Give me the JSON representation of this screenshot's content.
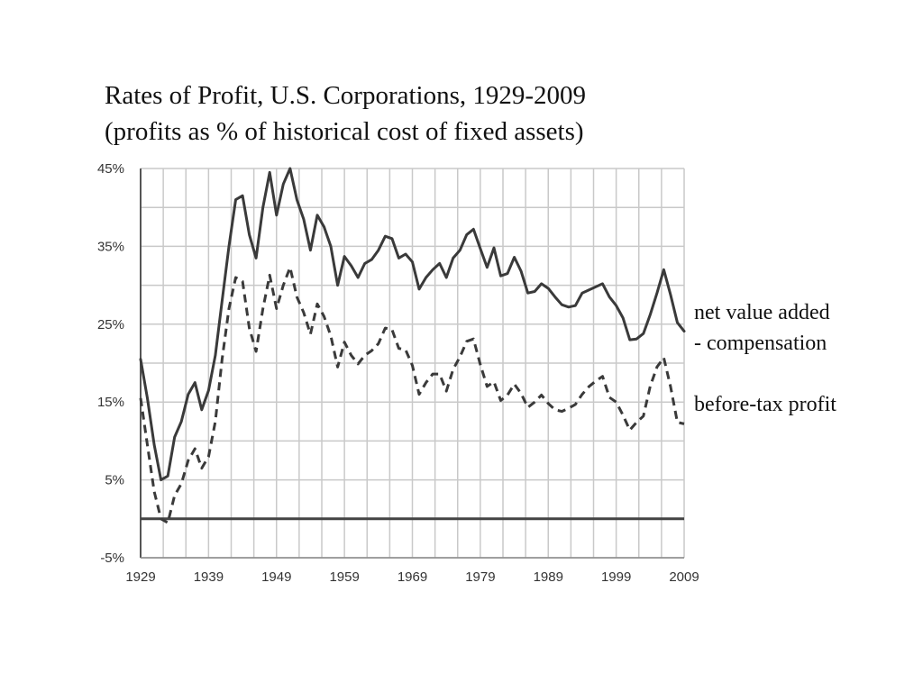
{
  "chart_data": {
    "type": "line",
    "title": "Rates of Profit, U.S. Corporations, 1929-2009",
    "subtitle": "(profits as % of historical cost of fixed assets)",
    "xlabel": "",
    "ylabel": "",
    "xlim": [
      1929,
      2009
    ],
    "ylim": [
      -5,
      45
    ],
    "x_ticks": [
      1929,
      1939,
      1949,
      1959,
      1969,
      1979,
      1989,
      1999,
      2009
    ],
    "y_ticks": [
      45,
      35,
      25,
      15,
      5,
      -5
    ],
    "y_tick_labels": [
      "45%",
      "35%",
      "25%",
      "15%",
      "5%",
      "-5%"
    ],
    "x_tick_labels": [
      "1929",
      "1939",
      "1949",
      "1959",
      "1969",
      "1979",
      "1989",
      "1999",
      "2009"
    ],
    "grid": true,
    "zero_line": true,
    "series": [
      {
        "name": "net value added - compensation",
        "label_lines": [
          "net value added",
          "- compensation"
        ],
        "style": "solid",
        "color": "#3a3a3a",
        "x": [
          1929,
          1930,
          1931,
          1932,
          1933,
          1934,
          1935,
          1936,
          1937,
          1938,
          1939,
          1940,
          1941,
          1942,
          1943,
          1944,
          1945,
          1946,
          1947,
          1948,
          1949,
          1950,
          1951,
          1952,
          1953,
          1954,
          1955,
          1956,
          1957,
          1958,
          1959,
          1960,
          1961,
          1962,
          1963,
          1964,
          1965,
          1966,
          1967,
          1968,
          1969,
          1970,
          1971,
          1972,
          1973,
          1974,
          1975,
          1976,
          1977,
          1978,
          1979,
          1980,
          1981,
          1982,
          1983,
          1984,
          1985,
          1986,
          1987,
          1988,
          1989,
          1990,
          1991,
          1992,
          1993,
          1994,
          1995,
          1996,
          1997,
          1998,
          1999,
          2000,
          2001,
          2002,
          2003,
          2004,
          2005,
          2006,
          2007,
          2008,
          2009
        ],
        "y": [
          20.5,
          15.5,
          9.5,
          5.0,
          5.5,
          10.5,
          12.5,
          16.0,
          17.5,
          14.0,
          16.5,
          21.0,
          28.0,
          35.0,
          41.0,
          41.5,
          36.5,
          33.5,
          40.0,
          44.5,
          39.0,
          43.0,
          45.0,
          41.0,
          38.5,
          34.5,
          39.0,
          37.5,
          35.0,
          30.0,
          33.7,
          32.5,
          31.0,
          32.8,
          33.3,
          34.5,
          36.3,
          36.0,
          33.5,
          34.0,
          33.0,
          29.5,
          31.0,
          32.0,
          32.8,
          31.0,
          33.5,
          34.5,
          36.5,
          37.2,
          34.7,
          32.3,
          34.8,
          31.2,
          31.5,
          33.6,
          31.8,
          29.0,
          29.2,
          30.2,
          29.6,
          28.5,
          27.5,
          27.2,
          27.4,
          29.0,
          29.4,
          29.8,
          30.2,
          28.5,
          27.4,
          25.8,
          23.0,
          23.1,
          23.8,
          26.2,
          29.0,
          32.0,
          28.8,
          25.2,
          24.1
        ]
      },
      {
        "name": "before-tax profit",
        "label_lines": [
          "before-tax profit"
        ],
        "style": "dashed",
        "color": "#3a3a3a",
        "x": [
          1929,
          1930,
          1931,
          1932,
          1933,
          1934,
          1935,
          1936,
          1937,
          1938,
          1939,
          1940,
          1941,
          1942,
          1943,
          1944,
          1945,
          1946,
          1947,
          1948,
          1949,
          1950,
          1951,
          1952,
          1953,
          1954,
          1955,
          1956,
          1957,
          1958,
          1959,
          1960,
          1961,
          1962,
          1963,
          1964,
          1965,
          1966,
          1967,
          1968,
          1969,
          1970,
          1971,
          1972,
          1973,
          1974,
          1975,
          1976,
          1977,
          1978,
          1979,
          1980,
          1981,
          1982,
          1983,
          1984,
          1985,
          1986,
          1987,
          1988,
          1989,
          1990,
          1991,
          1992,
          1993,
          1994,
          1995,
          1996,
          1997,
          1998,
          1999,
          2000,
          2001,
          2002,
          2003,
          2004,
          2005,
          2006,
          2007,
          2008,
          2009
        ],
        "y": [
          15.5,
          9.5,
          3.5,
          0.0,
          -0.5,
          3.0,
          4.5,
          7.5,
          9.0,
          6.5,
          8.0,
          12.5,
          20.5,
          27.0,
          31.0,
          30.5,
          24.5,
          21.5,
          27.0,
          31.3,
          27.0,
          30.0,
          32.3,
          28.5,
          26.5,
          23.7,
          27.6,
          26.0,
          23.5,
          19.5,
          22.7,
          21.0,
          19.9,
          21.0,
          21.6,
          22.5,
          24.5,
          24.3,
          21.9,
          21.7,
          19.7,
          16.0,
          17.5,
          18.6,
          18.6,
          16.4,
          19.2,
          20.8,
          22.8,
          23.1,
          19.8,
          17.0,
          17.6,
          15.2,
          15.9,
          17.3,
          16.1,
          14.3,
          15.0,
          15.9,
          14.8,
          14.0,
          13.8,
          14.2,
          14.7,
          16.0,
          17.0,
          17.7,
          18.3,
          15.6,
          15.0,
          13.3,
          11.4,
          12.4,
          13.2,
          17.0,
          19.5,
          20.7,
          17.0,
          12.4,
          12.2
        ]
      }
    ]
  }
}
